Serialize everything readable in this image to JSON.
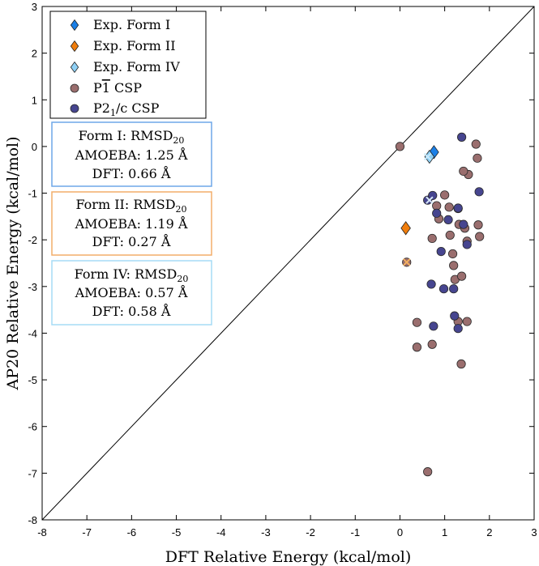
{
  "chart_data": {
    "type": "scatter",
    "title": "",
    "xlabel": "DFT Relative Energy (kcal/mol)",
    "ylabel": "AP20 Relative Energy (kcal/mol)",
    "xlim": [
      -8,
      3
    ],
    "ylim": [
      -8,
      3
    ],
    "xticks": [
      "-8",
      "-7",
      "-6",
      "-5",
      "-4",
      "-3",
      "-2",
      "-1",
      "0",
      "1",
      "2",
      "3"
    ],
    "yticks": [
      "-8",
      "-7",
      "-6",
      "-5",
      "-4",
      "-3",
      "-2",
      "-1",
      "0",
      "1",
      "2",
      "3"
    ],
    "reference_line": {
      "label": "y = x",
      "from": [
        -8,
        -8
      ],
      "to": [
        3,
        3
      ]
    },
    "legend": {
      "placement": "top-left",
      "entries": [
        {
          "label": "Exp. Form I",
          "marker": "diamond",
          "color": "#1a7fe6"
        },
        {
          "label": "Exp. Form II",
          "marker": "diamond",
          "color": "#f07d0c"
        },
        {
          "label": "Exp. Form IV",
          "marker": "diamond",
          "color": "#8fd0f5"
        },
        {
          "label_base": "P",
          "label_bar": "1",
          "label_rest": " CSP",
          "marker": "circle",
          "color": "#9a6e6e"
        },
        {
          "label_base": "P2",
          "label_sub": "1",
          "label_rest": "/c CSP",
          "marker": "circle",
          "color": "#46458f"
        }
      ]
    },
    "annotations": [
      {
        "title_base": "Form I: RMSD",
        "title_sub": "20",
        "amoeba": "AMOEBA: 1.25 Å",
        "dft": "DFT: 0.66 Å",
        "border_color": "#6fa7e8"
      },
      {
        "title_base": "Form II: RMSD",
        "title_sub": "20",
        "amoeba": "AMOEBA: 1.19 Å",
        "dft": "DFT: 0.27 Å",
        "border_color": "#f2ad6a"
      },
      {
        "title_base": "Form IV: RMSD",
        "title_sub": "20",
        "amoeba": "AMOEBA: 0.57 Å",
        "dft": "DFT: 0.58 Å",
        "border_color": "#a6dcf5"
      }
    ],
    "series": [
      {
        "name": "P-1 CSP",
        "marker": "circle",
        "color": "#9a6e6e",
        "points": [
          [
            0.0,
            0.0
          ],
          [
            0.62,
            -6.97
          ],
          [
            0.38,
            -3.77
          ],
          [
            0.38,
            -4.3
          ],
          [
            0.72,
            -4.24
          ],
          [
            0.72,
            -1.97
          ],
          [
            0.82,
            -1.27
          ],
          [
            0.87,
            -1.55
          ],
          [
            1.0,
            -1.04
          ],
          [
            1.1,
            -1.3
          ],
          [
            1.12,
            -1.9
          ],
          [
            1.2,
            -2.55
          ],
          [
            1.23,
            -2.85
          ],
          [
            1.3,
            -3.75
          ],
          [
            1.38,
            -2.78
          ],
          [
            1.32,
            -1.67
          ],
          [
            1.45,
            -1.75
          ],
          [
            1.5,
            -2.03
          ],
          [
            1.53,
            -0.6
          ],
          [
            1.42,
            -0.53
          ],
          [
            1.37,
            -4.66
          ],
          [
            1.5,
            -3.75
          ],
          [
            1.7,
            0.05
          ],
          [
            1.73,
            -0.25
          ],
          [
            1.75,
            -1.68
          ],
          [
            1.78,
            -1.93
          ],
          [
            1.3,
            -1.33
          ],
          [
            1.18,
            -2.3
          ],
          [
            0.15,
            -2.48
          ]
        ]
      },
      {
        "name": "P2_1/c CSP",
        "marker": "circle",
        "color": "#46458f",
        "points": [
          [
            0.62,
            -1.15
          ],
          [
            0.73,
            -1.05
          ],
          [
            0.82,
            -1.43
          ],
          [
            0.92,
            -2.25
          ],
          [
            0.75,
            -3.85
          ],
          [
            0.7,
            -2.95
          ],
          [
            0.98,
            -3.05
          ],
          [
            1.2,
            -3.05
          ],
          [
            1.22,
            -3.63
          ],
          [
            1.3,
            -3.9
          ],
          [
            1.3,
            -1.32
          ],
          [
            1.38,
            0.2
          ],
          [
            1.5,
            -2.1
          ],
          [
            1.77,
            -0.97
          ],
          [
            1.08,
            -1.57
          ],
          [
            1.42,
            -1.67
          ]
        ]
      },
      {
        "name": "Exp. Form I",
        "marker": "diamond",
        "color": "#1a7fe6",
        "points": [
          [
            0.76,
            -0.12
          ]
        ]
      },
      {
        "name": "Exp. Form II",
        "marker": "diamond",
        "color": "#f07d0c",
        "points": [
          [
            0.13,
            -1.75
          ]
        ]
      },
      {
        "name": "Exp. Form IV",
        "marker": "diamond",
        "color": "#8fd0f5",
        "points": [
          [
            0.66,
            -0.22
          ]
        ]
      }
    ],
    "exp_crosses": [
      {
        "name": "Form I match",
        "x": 0.66,
        "y": -1.15,
        "color": "#d8e8f8"
      },
      {
        "name": "Form II match",
        "x": 0.15,
        "y": -2.48,
        "color": "#f4b060"
      },
      {
        "name": "Form IV match",
        "x": 0.62,
        "y": -0.22,
        "color": "#c8e8fa"
      }
    ]
  }
}
